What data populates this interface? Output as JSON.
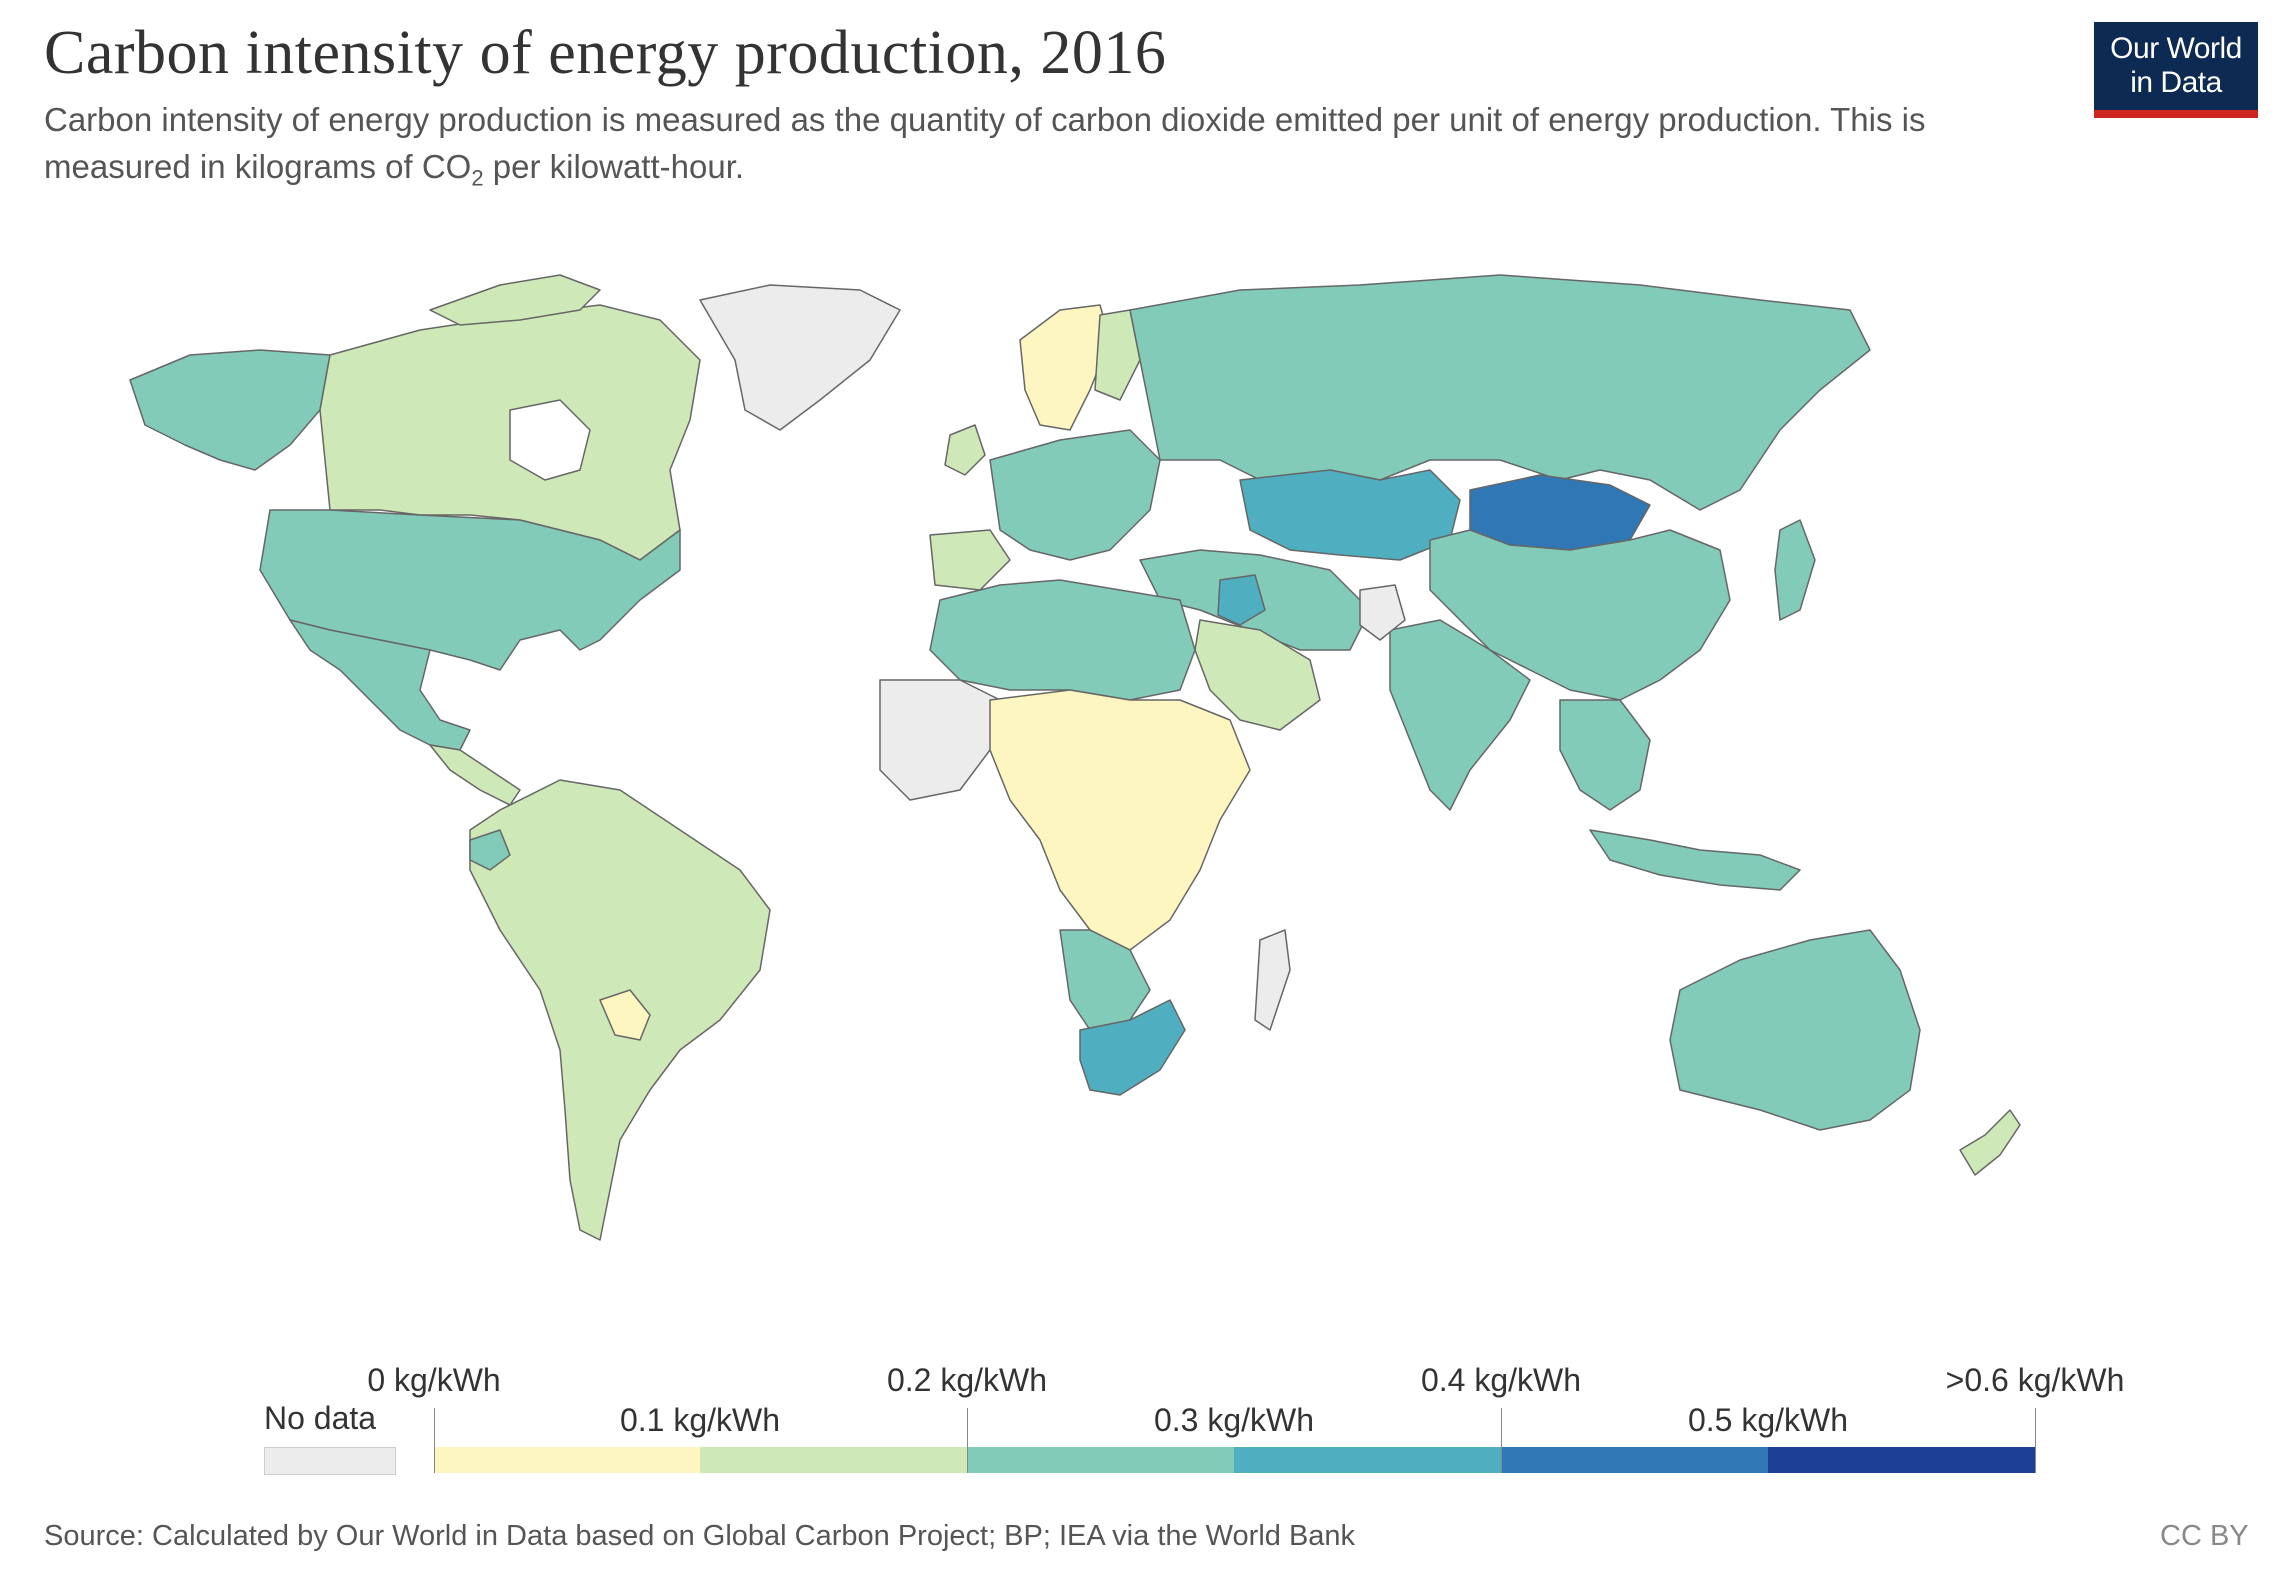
{
  "header": {
    "title": "Carbon intensity of energy production, 2016",
    "subtitle_pre": "Carbon intensity of energy production is measured as the quantity of carbon dioxide emitted per unit of energy production. This is measured in kilograms of CO",
    "subtitle_sub": "2",
    "subtitle_post": " per kilowatt-hour.",
    "logo_line1": "Our World",
    "logo_line2": "in Data"
  },
  "colors": {
    "no_data": "#ececec",
    "bin_0_01": "#fdf6c0",
    "bin_01_02": "#cfe8b8",
    "bin_02_03": "#82cbb9",
    "bin_03_04": "#4fafc0",
    "bin_04_05": "#2f78b5",
    "bin_05_06": "#1d3f95",
    "ocean": "#ffffff",
    "border": "#666666",
    "logo_bg": "#0d2a52",
    "logo_accent": "#ce261e"
  },
  "legend": {
    "no_data_label": "No data",
    "upper_labels": [
      "0 kg/kWh",
      "0.2 kg/kWh",
      "0.4 kg/kWh",
      ">0.6 kg/kWh"
    ],
    "lower_labels": [
      "0.1 kg/kWh",
      "0.3 kg/kWh",
      "0.5 kg/kWh"
    ]
  },
  "map": {
    "regions": [
      {
        "name": "North America (Canada)",
        "bin": "bin_01_02"
      },
      {
        "name": "United States",
        "bin": "bin_02_03"
      },
      {
        "name": "Mexico",
        "bin": "bin_02_03"
      },
      {
        "name": "Greenland",
        "bin": "no_data"
      },
      {
        "name": "South America",
        "bin": "bin_01_02"
      },
      {
        "name": "Paraguay",
        "bin": "bin_0_01"
      },
      {
        "name": "Europe",
        "bin": "bin_02_03"
      },
      {
        "name": "Scandinavia",
        "bin": "bin_0_01"
      },
      {
        "name": "Russia",
        "bin": "bin_02_03"
      },
      {
        "name": "Kazakhstan",
        "bin": "bin_03_04"
      },
      {
        "name": "Mongolia",
        "bin": "bin_04_05"
      },
      {
        "name": "China",
        "bin": "bin_02_03"
      },
      {
        "name": "India",
        "bin": "bin_02_03"
      },
      {
        "name": "Middle East",
        "bin": "bin_02_03"
      },
      {
        "name": "Saudi Arabia",
        "bin": "bin_01_02"
      },
      {
        "name": "North Africa",
        "bin": "bin_02_03"
      },
      {
        "name": "Central Africa",
        "bin": "bin_0_01"
      },
      {
        "name": "South Africa",
        "bin": "bin_03_04"
      },
      {
        "name": "Australia",
        "bin": "bin_02_03"
      },
      {
        "name": "New Zealand",
        "bin": "bin_01_02"
      },
      {
        "name": "Southeast Asia",
        "bin": "bin_02_03"
      }
    ]
  },
  "footer": {
    "source": "Source: Calculated by Our World in Data based on Global Carbon Project; BP; IEA via the World Bank",
    "license": "CC BY"
  }
}
